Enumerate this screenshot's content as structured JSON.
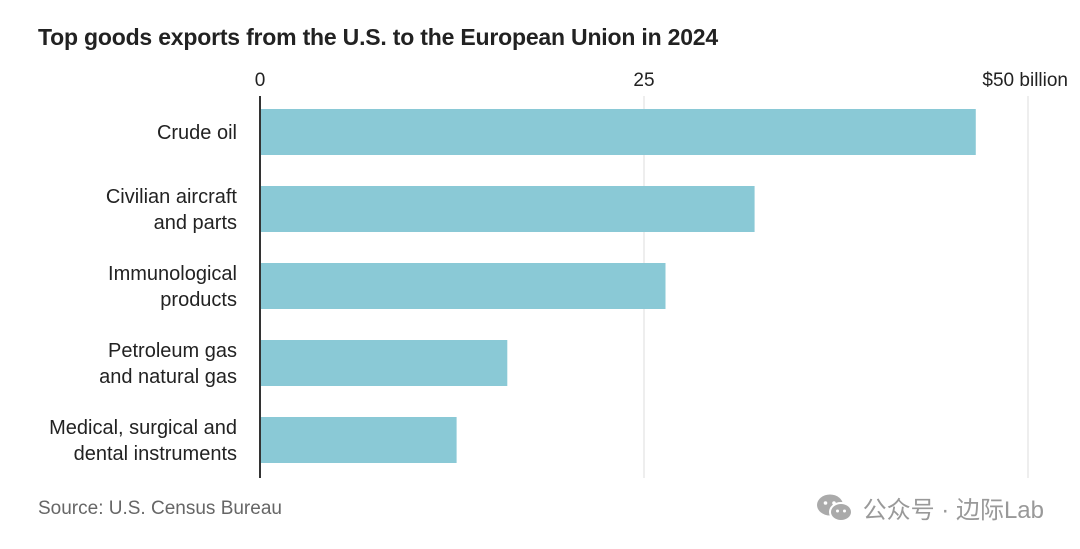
{
  "title": "Top goods exports from the U.S. to the European Union in 2024",
  "source": "Source: U.S. Census Bureau",
  "watermark": "公众号 · 边际Lab",
  "chart_data": {
    "type": "bar",
    "orientation": "horizontal",
    "title": "Top goods exports from the U.S. to the European Union in 2024",
    "categories": [
      [
        "Crude oil"
      ],
      [
        "Civilian aircraft",
        "and parts"
      ],
      [
        "Immunological",
        "products"
      ],
      [
        "Petroleum gas",
        "and natural gas"
      ],
      [
        "Medical, surgical and",
        "dental instruments"
      ]
    ],
    "values": [
      46.6,
      32.2,
      26.4,
      16.1,
      12.8
    ],
    "xlim": [
      0,
      50
    ],
    "ticks": [
      {
        "value": 0,
        "label": "0"
      },
      {
        "value": 25,
        "label": "25"
      },
      {
        "value": 50,
        "label": "$50 billion"
      }
    ],
    "grid": true,
    "bar_color": "#8ac9d6",
    "grid_color": "#dddddd",
    "axis_color": "#333333"
  }
}
